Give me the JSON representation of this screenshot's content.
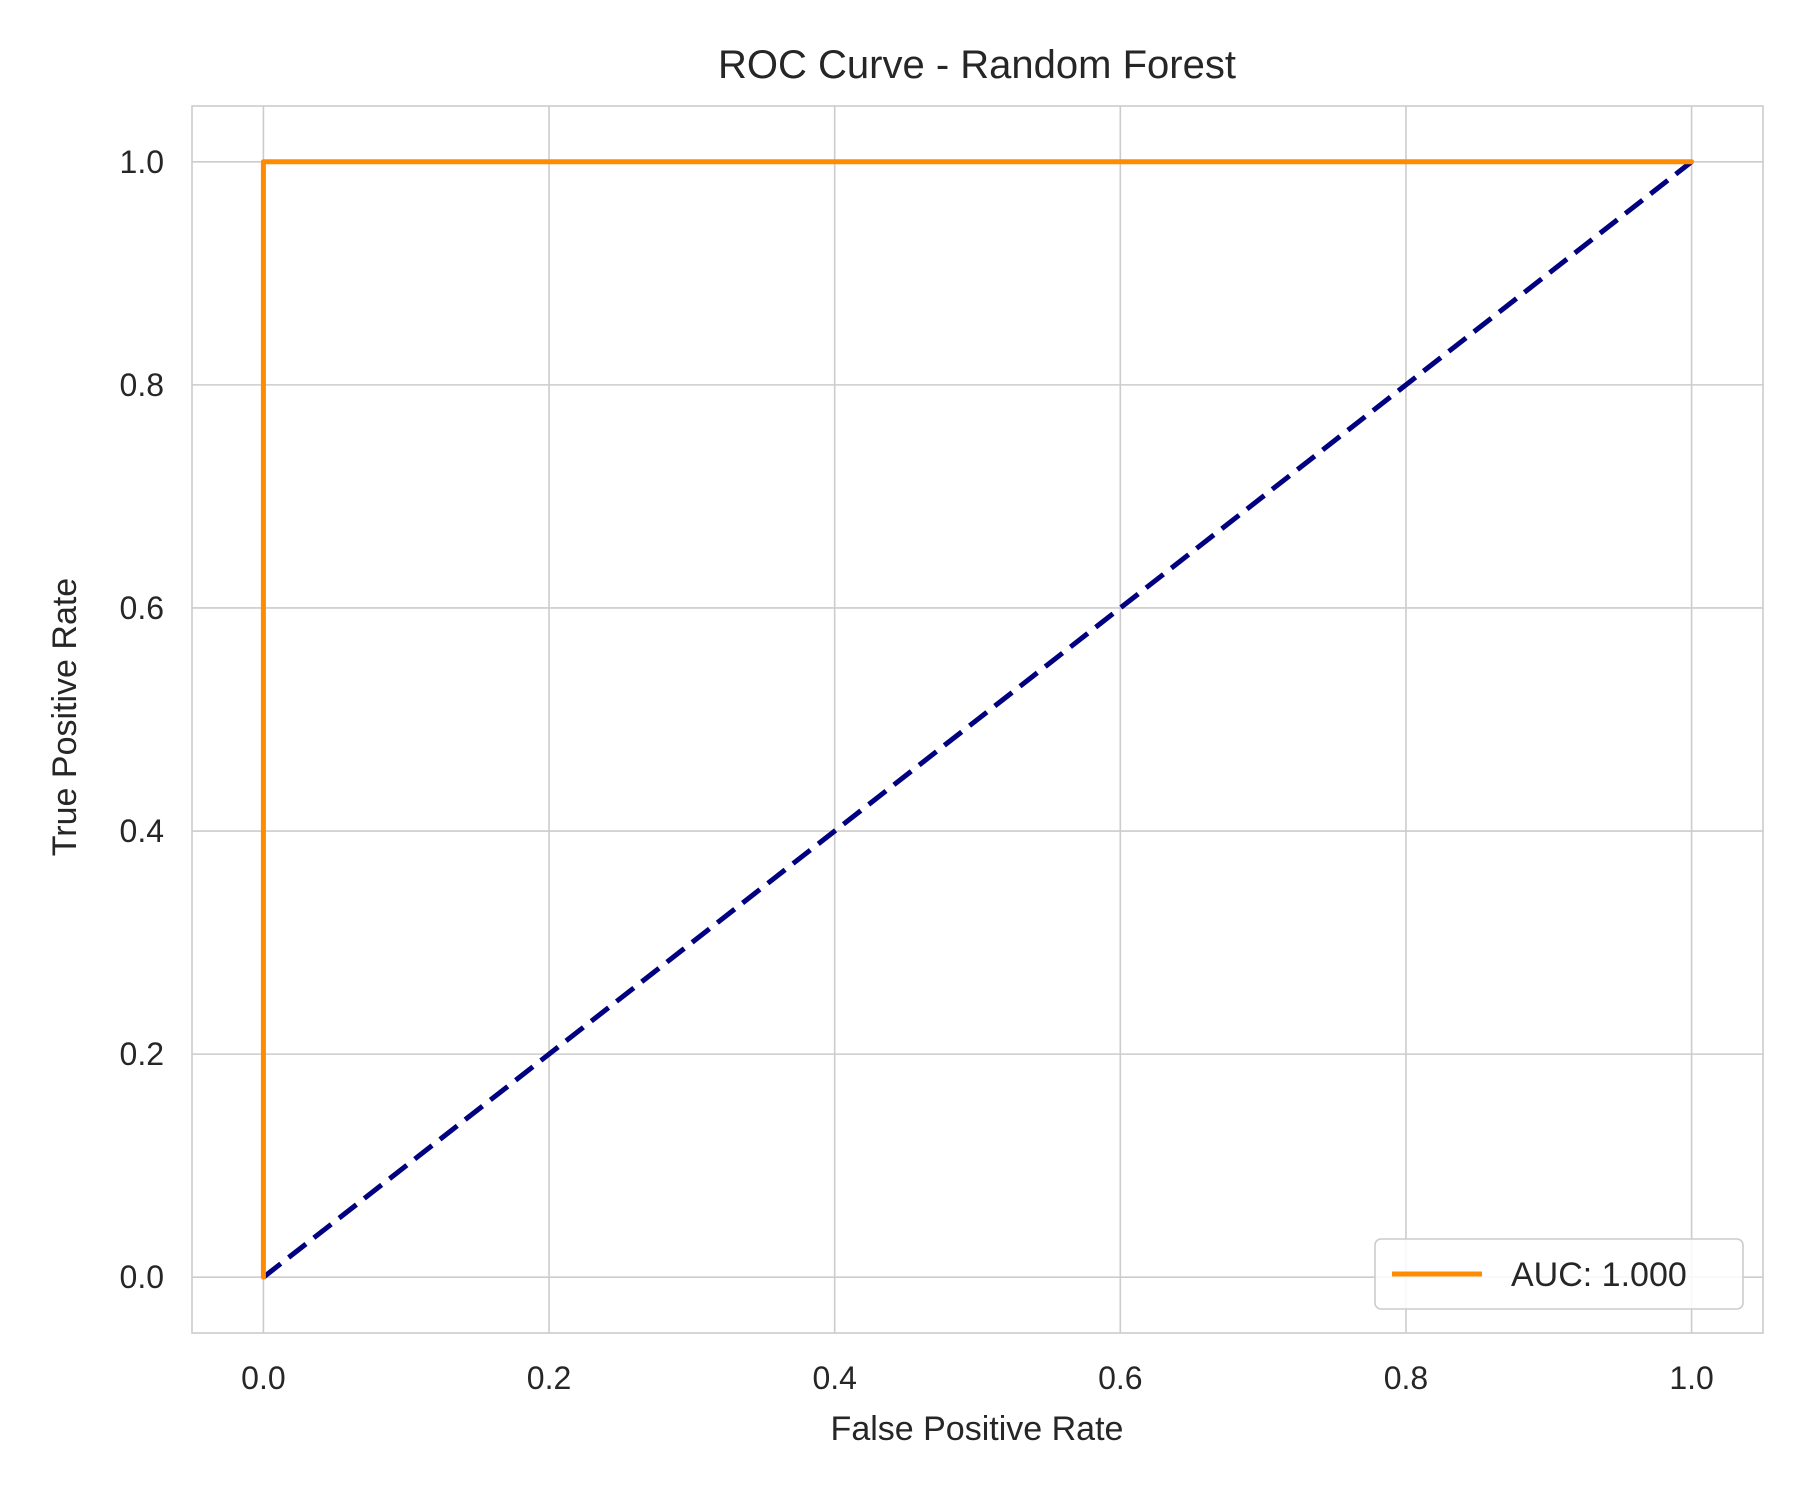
{
  "chart_data": {
    "type": "line",
    "title": "ROC Curve - Random Forest",
    "xlabel": "False Positive Rate",
    "ylabel": "True Positive Rate",
    "xlim": [
      -0.05,
      1.05
    ],
    "ylim": [
      -0.05,
      1.05
    ],
    "xticks": [
      0.0,
      0.2,
      0.4,
      0.6,
      0.8,
      1.0
    ],
    "xtick_labels": [
      "0.0",
      "0.2",
      "0.4",
      "0.6",
      "0.8",
      "1.0"
    ],
    "yticks": [
      0.0,
      0.2,
      0.4,
      0.6,
      0.8,
      1.0
    ],
    "ytick_labels": [
      "0.0",
      "0.2",
      "0.4",
      "0.6",
      "0.8",
      "1.0"
    ],
    "grid": true,
    "legend_position": "lower-right",
    "series": [
      {
        "name": "AUC: 1.000",
        "color": "#ff8c00",
        "style": "solid",
        "x": [
          0.0,
          0.0,
          1.0
        ],
        "y": [
          0.0,
          1.0,
          1.0
        ]
      },
      {
        "color": "#000080",
        "style": "dashed",
        "x": [
          0.0,
          1.0
        ],
        "y": [
          0.0,
          1.0
        ]
      }
    ]
  }
}
